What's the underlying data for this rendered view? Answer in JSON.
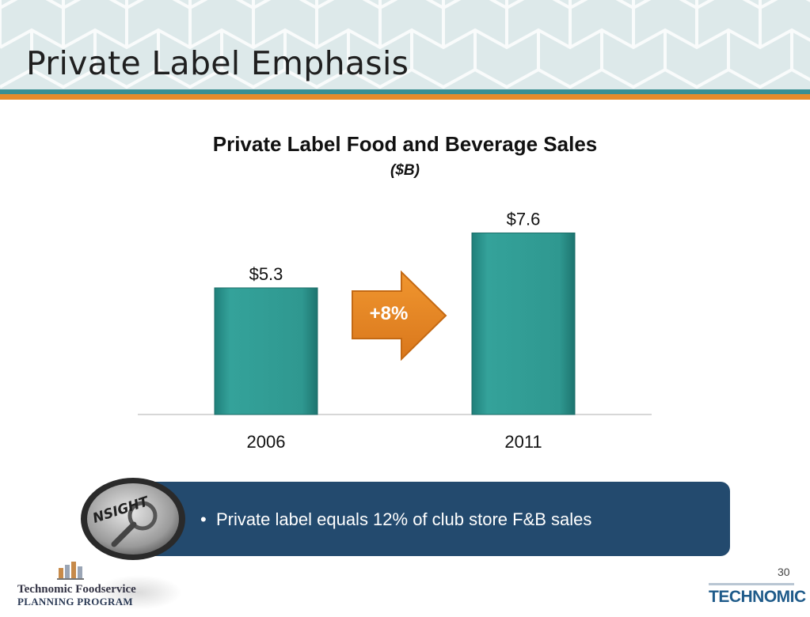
{
  "slide": {
    "title": "Private Label Emphasis",
    "page_number": "30"
  },
  "colors": {
    "bar": "#2d9a92",
    "accent_orange": "#e58b2b",
    "insight_panel": "#234a6e",
    "header_bg": "#dde9ea"
  },
  "chart_data": {
    "type": "bar",
    "title": "Private Label Food and Beverage Sales",
    "subtitle": "($B)",
    "categories": [
      "2006",
      "2011"
    ],
    "values": [
      5.3,
      7.6
    ],
    "data_labels": [
      "$5.3",
      "$7.6"
    ],
    "annotation": "+8%",
    "xlabel": "",
    "ylabel": "",
    "grid": false,
    "legend": "none"
  },
  "insight": {
    "badge_icon": "magnifier-icon",
    "badge_text": "NSIGHT",
    "bullets": [
      "Private label equals 12% of club store F&B sales"
    ]
  },
  "footer": {
    "left_logo_line1": "Technomic Foodservice",
    "left_logo_line2": "PLANNING PROGRAM",
    "right_logo": "TECHNOMIC"
  }
}
